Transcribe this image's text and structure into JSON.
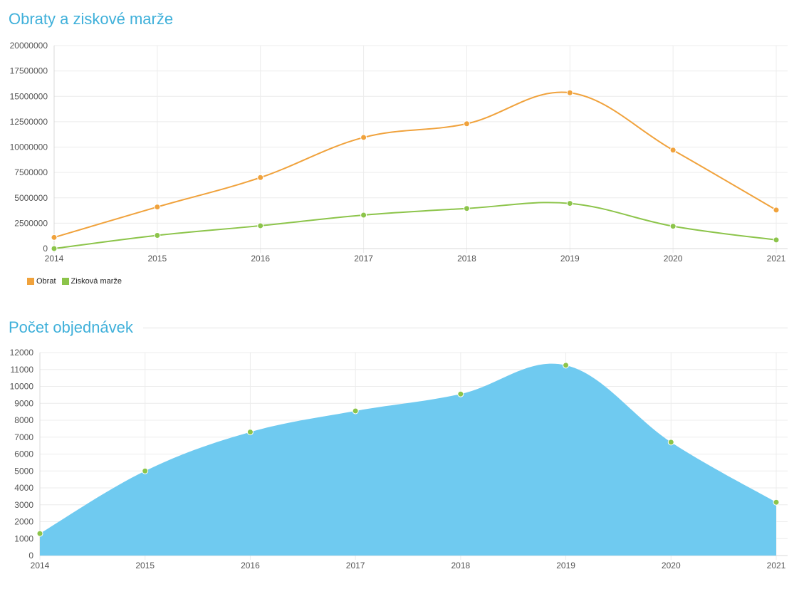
{
  "chart_data": [
    {
      "type": "line",
      "title": "Obraty a ziskové marže",
      "categories": [
        "2014",
        "2015",
        "2016",
        "2017",
        "2018",
        "2019",
        "2020",
        "2021"
      ],
      "y_ticks": [
        "0",
        "2500000",
        "5000000",
        "7500000",
        "10000000",
        "12500000",
        "15000000",
        "17500000",
        "20000000"
      ],
      "ylim": [
        0,
        20000000
      ],
      "grid": true,
      "legend_position": "bottom-left",
      "series": [
        {
          "name": "Obrat",
          "color": "#f0a23c",
          "values": [
            1100000,
            4100000,
            7000000,
            10950000,
            12300000,
            15350000,
            9700000,
            3800000
          ]
        },
        {
          "name": "Zisková marže",
          "color": "#8cc44a",
          "values": [
            0,
            1300000,
            2250000,
            3300000,
            3950000,
            4450000,
            2200000,
            850000
          ]
        }
      ]
    },
    {
      "type": "area",
      "title": "Počet objednávek",
      "categories": [
        "2014",
        "2015",
        "2016",
        "2017",
        "2018",
        "2019",
        "2020",
        "2021"
      ],
      "y_ticks": [
        "0",
        "1000",
        "2000",
        "3000",
        "4000",
        "5000",
        "6000",
        "7000",
        "8000",
        "9000",
        "10000",
        "11000",
        "12000"
      ],
      "ylim": [
        0,
        12000
      ],
      "grid": true,
      "fill_color": "#6fcaf0",
      "point_color": "#8cc44a",
      "series": [
        {
          "name": "",
          "values": [
            1300,
            5000,
            7300,
            8550,
            9550,
            11250,
            6700,
            3150
          ]
        }
      ]
    }
  ]
}
